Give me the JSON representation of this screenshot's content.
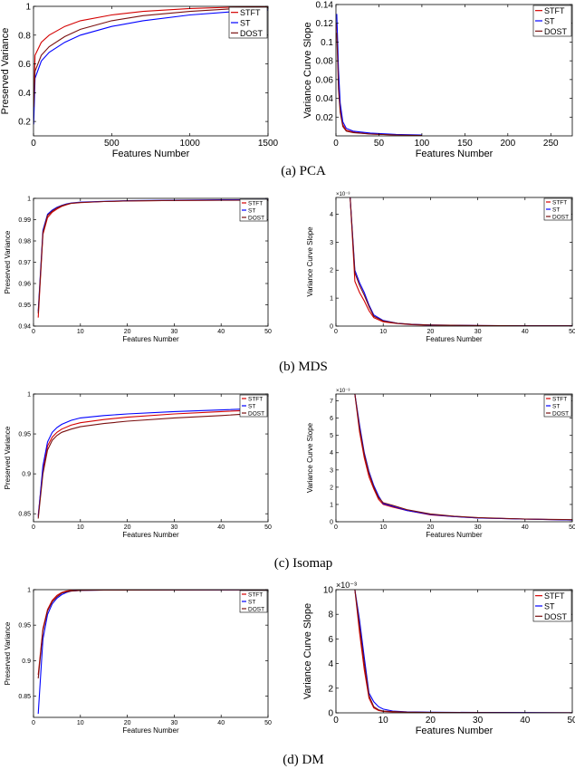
{
  "colors": {
    "STFT": "#d40000",
    "ST": "#0000ff",
    "DOST": "#7a1010"
  },
  "captions": [
    "(a) PCA",
    "(b) MDS",
    "(c) Isomap",
    "(d) DM"
  ],
  "legend": [
    "STFT",
    "ST",
    "DOST"
  ],
  "chart_data": [
    {
      "panel": "PCA-left",
      "type": "line",
      "xlabel": "Features Number",
      "ylabel": "Preserved Variance",
      "xlim": [
        0,
        1500
      ],
      "ylim": [
        0.1,
        1
      ],
      "xticks": [
        0,
        500,
        1000,
        1500
      ],
      "yticks": [
        0.2,
        0.4,
        0.6,
        0.8,
        1
      ],
      "legend_loc": "top-right",
      "multiplier": "",
      "series": [
        {
          "name": "STFT",
          "x": [
            1,
            10,
            50,
            100,
            200,
            300,
            500,
            700,
            1000,
            1300,
            1500
          ],
          "y": [
            0.3,
            0.66,
            0.75,
            0.8,
            0.86,
            0.9,
            0.94,
            0.965,
            0.985,
            0.995,
            0.998
          ]
        },
        {
          "name": "ST",
          "x": [
            1,
            10,
            50,
            100,
            200,
            300,
            500,
            700,
            1000,
            1300,
            1500
          ],
          "y": [
            0.18,
            0.5,
            0.62,
            0.68,
            0.75,
            0.8,
            0.86,
            0.9,
            0.94,
            0.965,
            0.975
          ]
        },
        {
          "name": "DOST",
          "x": [
            1,
            10,
            50,
            100,
            200,
            300,
            500,
            700,
            1000,
            1300,
            1500
          ],
          "y": [
            0.3,
            0.55,
            0.66,
            0.72,
            0.79,
            0.84,
            0.9,
            0.935,
            0.965,
            0.985,
            0.99
          ]
        }
      ]
    },
    {
      "panel": "PCA-right",
      "type": "line",
      "xlabel": "Features Number",
      "ylabel": "Variance Curve Slope",
      "xlim": [
        0,
        275
      ],
      "ylim": [
        0,
        0.14
      ],
      "xticks": [
        0,
        50,
        100,
        150,
        200,
        250
      ],
      "yticks": [
        0.02,
        0.04,
        0.06,
        0.08,
        0.1,
        0.12,
        0.14
      ],
      "legend_loc": "top-right",
      "multiplier": "",
      "series": [
        {
          "name": "STFT",
          "x": [
            1,
            2,
            3,
            5,
            8,
            12,
            20,
            40,
            70,
            100
          ],
          "y": [
            0.12,
            0.09,
            0.06,
            0.03,
            0.012,
            0.006,
            0.004,
            0.002,
            0.001,
            0.0005
          ]
        },
        {
          "name": "ST",
          "x": [
            1,
            2,
            3,
            5,
            8,
            12,
            20,
            40,
            70,
            100
          ],
          "y": [
            0.13,
            0.1,
            0.07,
            0.035,
            0.015,
            0.008,
            0.005,
            0.003,
            0.0015,
            0.001
          ]
        },
        {
          "name": "DOST",
          "x": [
            1,
            2,
            3,
            5,
            8,
            12,
            20,
            40,
            70,
            100
          ],
          "y": [
            0.11,
            0.08,
            0.05,
            0.025,
            0.01,
            0.005,
            0.0035,
            0.002,
            0.001,
            0.0005
          ]
        }
      ]
    },
    {
      "panel": "MDS-left",
      "type": "line",
      "xlabel": "Features Number",
      "ylabel": "Preserved Variance",
      "xlim": [
        0,
        50
      ],
      "ylim": [
        0.94,
        1
      ],
      "xticks": [
        0,
        10,
        20,
        30,
        40,
        50
      ],
      "yticks": [
        0.94,
        0.95,
        0.96,
        0.97,
        0.98,
        0.99,
        1
      ],
      "legend_loc": "top-right",
      "multiplier": "",
      "series": [
        {
          "name": "STFT",
          "x": [
            1,
            2,
            3,
            4,
            5,
            6,
            7,
            8,
            10,
            15,
            20,
            30,
            40,
            50
          ],
          "y": [
            0.944,
            0.983,
            0.991,
            0.9935,
            0.995,
            0.9962,
            0.997,
            0.9976,
            0.998,
            0.9985,
            0.9988,
            0.999,
            0.9992,
            0.9993
          ]
        },
        {
          "name": "ST",
          "x": [
            1,
            2,
            3,
            4,
            5,
            6,
            7,
            8,
            10,
            15,
            20,
            30,
            40,
            50
          ],
          "y": [
            0.947,
            0.985,
            0.9925,
            0.9945,
            0.9958,
            0.9967,
            0.9974,
            0.9978,
            0.9982,
            0.9986,
            0.9989,
            0.9991,
            0.9993,
            0.9994
          ]
        },
        {
          "name": "DOST",
          "x": [
            1,
            2,
            3,
            4,
            5,
            6,
            7,
            8,
            10,
            15,
            20,
            30,
            40,
            50
          ],
          "y": [
            0.946,
            0.984,
            0.992,
            0.994,
            0.9955,
            0.9965,
            0.9972,
            0.9977,
            0.9981,
            0.9985,
            0.9988,
            0.999,
            0.9991,
            0.9992
          ]
        }
      ]
    },
    {
      "panel": "MDS-right",
      "type": "line",
      "xlabel": "Features Number",
      "ylabel": "Variance Curve Slope",
      "xlim": [
        0,
        50
      ],
      "ylim": [
        0,
        4.6
      ],
      "xticks": [
        0,
        10,
        20,
        30,
        40,
        50
      ],
      "yticks": [
        0,
        1,
        2,
        3,
        4
      ],
      "legend_loc": "top-right",
      "multiplier": "×10⁻³",
      "series": [
        {
          "name": "STFT",
          "x": [
            3,
            4,
            5,
            6,
            7,
            8,
            10,
            13,
            16,
            20,
            30,
            40,
            50
          ],
          "y": [
            4.6,
            1.6,
            1.2,
            0.9,
            0.55,
            0.3,
            0.15,
            0.09,
            0.05,
            0.03,
            0.02,
            0.01,
            0.01
          ]
        },
        {
          "name": "ST",
          "x": [
            3,
            4,
            5,
            6,
            7,
            8,
            10,
            13,
            16,
            20,
            30,
            40,
            50
          ],
          "y": [
            4.6,
            2.0,
            1.55,
            1.2,
            0.75,
            0.4,
            0.2,
            0.1,
            0.06,
            0.04,
            0.02,
            0.01,
            0.01
          ]
        },
        {
          "name": "DOST",
          "x": [
            3,
            4,
            5,
            6,
            7,
            8,
            10,
            13,
            16,
            20,
            30,
            40,
            50
          ],
          "y": [
            4.6,
            1.9,
            1.45,
            1.1,
            0.7,
            0.35,
            0.18,
            0.1,
            0.06,
            0.04,
            0.02,
            0.01,
            0.01
          ]
        }
      ]
    },
    {
      "panel": "Isomap-left",
      "type": "line",
      "xlabel": "Features Number",
      "ylabel": "Preserved Variance",
      "xlim": [
        0,
        50
      ],
      "ylim": [
        0.84,
        1
      ],
      "xticks": [
        0,
        10,
        20,
        30,
        40,
        50
      ],
      "yticks": [
        0.85,
        0.9,
        0.95,
        1
      ],
      "legend_loc": "top-right",
      "multiplier": "",
      "series": [
        {
          "name": "STFT",
          "x": [
            1,
            2,
            3,
            4,
            5,
            6,
            8,
            10,
            15,
            20,
            30,
            40,
            48
          ],
          "y": [
            0.848,
            0.905,
            0.935,
            0.946,
            0.952,
            0.956,
            0.961,
            0.964,
            0.968,
            0.971,
            0.975,
            0.978,
            0.98
          ]
        },
        {
          "name": "ST",
          "x": [
            1,
            2,
            3,
            4,
            5,
            6,
            8,
            10,
            15,
            20,
            30,
            40,
            48
          ],
          "y": [
            0.846,
            0.91,
            0.94,
            0.952,
            0.958,
            0.962,
            0.967,
            0.97,
            0.973,
            0.975,
            0.978,
            0.98,
            0.982
          ]
        },
        {
          "name": "DOST",
          "x": [
            1,
            2,
            3,
            4,
            5,
            6,
            8,
            10,
            15,
            20,
            30,
            40,
            48
          ],
          "y": [
            0.844,
            0.9,
            0.93,
            0.942,
            0.948,
            0.952,
            0.956,
            0.959,
            0.963,
            0.966,
            0.97,
            0.973,
            0.976
          ]
        }
      ]
    },
    {
      "panel": "Isomap-right",
      "type": "line",
      "xlabel": "Features Number",
      "ylabel": "Variance Curve Slope",
      "xlim": [
        0,
        50
      ],
      "ylim": [
        0,
        7.4
      ],
      "xticks": [
        0,
        10,
        20,
        30,
        40,
        50
      ],
      "yticks": [
        0,
        1,
        2,
        3,
        4,
        5,
        6,
        7
      ],
      "legend_loc": "top-right",
      "multiplier": "×10⁻³",
      "series": [
        {
          "name": "STFT",
          "x": [
            4,
            5,
            6,
            7,
            8,
            9,
            10,
            12,
            15,
            20,
            25,
            30,
            40,
            50
          ],
          "y": [
            7.4,
            5.2,
            3.7,
            2.6,
            1.9,
            1.3,
            1.0,
            0.85,
            0.65,
            0.4,
            0.3,
            0.22,
            0.15,
            0.1
          ]
        },
        {
          "name": "ST",
          "x": [
            4,
            5,
            6,
            7,
            8,
            9,
            10,
            12,
            15,
            20,
            25,
            30,
            40,
            50
          ],
          "y": [
            7.4,
            5.6,
            4.0,
            2.9,
            2.1,
            1.5,
            1.05,
            0.9,
            0.65,
            0.42,
            0.3,
            0.22,
            0.15,
            0.1
          ]
        },
        {
          "name": "DOST",
          "x": [
            4,
            5,
            6,
            7,
            8,
            9,
            10,
            12,
            15,
            20,
            25,
            30,
            40,
            50
          ],
          "y": [
            7.4,
            5.4,
            3.9,
            2.8,
            2.0,
            1.4,
            1.1,
            0.95,
            0.7,
            0.45,
            0.32,
            0.24,
            0.16,
            0.12
          ]
        }
      ]
    },
    {
      "panel": "DM-left",
      "type": "line",
      "xlabel": "Features Number",
      "ylabel": "Preserved Variance",
      "xlim": [
        0,
        50
      ],
      "ylim": [
        0.82,
        1
      ],
      "xticks": [
        0,
        10,
        20,
        30,
        40,
        50
      ],
      "yticks": [
        0.85,
        0.9,
        0.95,
        1
      ],
      "legend_loc": "top-right",
      "multiplier": "",
      "series": [
        {
          "name": "STFT",
          "x": [
            1,
            2,
            3,
            4,
            5,
            6,
            7,
            8,
            10,
            15,
            20,
            30,
            40,
            50
          ],
          "y": [
            0.88,
            0.945,
            0.972,
            0.985,
            0.992,
            0.996,
            0.998,
            0.999,
            0.9993,
            0.9995,
            0.9996,
            0.9997,
            0.9998,
            0.9999
          ]
        },
        {
          "name": "ST",
          "x": [
            1,
            2,
            3,
            4,
            5,
            6,
            7,
            8,
            10,
            15,
            20,
            30,
            40,
            50
          ],
          "y": [
            0.825,
            0.93,
            0.965,
            0.98,
            0.988,
            0.993,
            0.996,
            0.998,
            0.999,
            0.9995,
            0.9996,
            0.9997,
            0.9998,
            0.9999
          ]
        },
        {
          "name": "DOST",
          "x": [
            1,
            2,
            3,
            4,
            5,
            6,
            7,
            8,
            10,
            15,
            20,
            30,
            40,
            50
          ],
          "y": [
            0.875,
            0.942,
            0.97,
            0.983,
            0.99,
            0.995,
            0.997,
            0.998,
            0.999,
            0.9994,
            0.9995,
            0.9996,
            0.9997,
            0.9998
          ]
        }
      ]
    },
    {
      "panel": "DM-right",
      "type": "line",
      "xlabel": "Features Number",
      "ylabel": "Variance Curve Slope",
      "xlim": [
        0,
        50
      ],
      "ylim": [
        0,
        10
      ],
      "xticks": [
        0,
        10,
        20,
        30,
        40,
        50
      ],
      "yticks": [
        0,
        2,
        4,
        6,
        8,
        10
      ],
      "legend_loc": "top-right",
      "multiplier": "×10⁻³",
      "series": [
        {
          "name": "STFT",
          "x": [
            4,
            5,
            6,
            7,
            8,
            9,
            10,
            12,
            15,
            20,
            30,
            40,
            50
          ],
          "y": [
            10,
            6.5,
            3.5,
            1.2,
            0.4,
            0.2,
            0.12,
            0.08,
            0.05,
            0.03,
            0.02,
            0.01,
            0.01
          ]
        },
        {
          "name": "ST",
          "x": [
            4,
            5,
            6,
            7,
            8,
            9,
            10,
            12,
            15,
            20,
            30,
            40,
            50
          ],
          "y": [
            10,
            7.5,
            4.5,
            1.6,
            0.9,
            0.5,
            0.3,
            0.15,
            0.08,
            0.05,
            0.03,
            0.02,
            0.01
          ]
        },
        {
          "name": "DOST",
          "x": [
            4,
            5,
            6,
            7,
            8,
            9,
            10,
            12,
            15,
            20,
            30,
            40,
            50
          ],
          "y": [
            10,
            7.0,
            4.0,
            1.4,
            0.5,
            0.25,
            0.15,
            0.1,
            0.06,
            0.04,
            0.02,
            0.01,
            0.01
          ]
        }
      ]
    }
  ]
}
